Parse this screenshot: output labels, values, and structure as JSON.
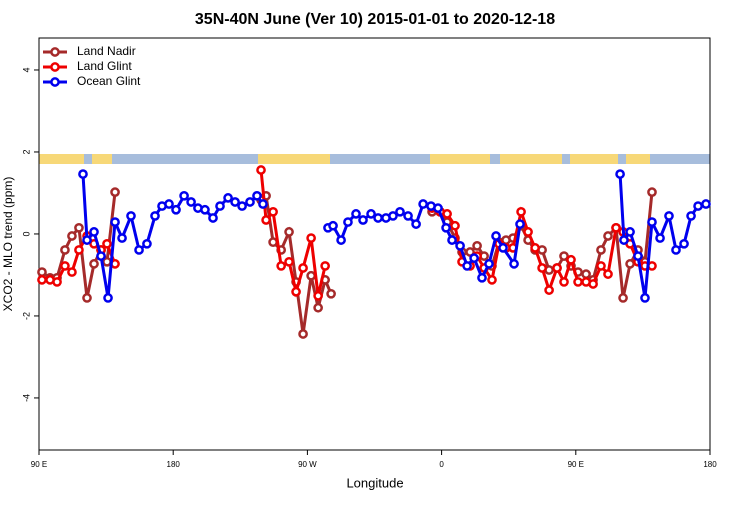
{
  "chart_data": {
    "type": "line",
    "title": "35N-40N June (Ver 10)   2015-01-01 to 2020-12-18",
    "x_label": "Longitude",
    "y_label": "XCO2 - MLO trend (ppm)",
    "xlim": [
      90,
      540
    ],
    "xticks": [
      {
        "value": 90,
        "label": "90 E"
      },
      180,
      {
        "value": 270,
        "label": "90 W"
      },
      {
        "value": 360,
        "label": "0"
      },
      {
        "value": 450,
        "label": "90 E"
      },
      {
        "value": 540,
        "label": "180"
      }
    ],
    "ylim": [
      -5.27,
      4.78
    ],
    "yticks": [
      -4,
      -2,
      0,
      2,
      4
    ],
    "legend": "top-left",
    "series": [
      {
        "name": "Land Nadir",
        "color": "#a52a2a",
        "x": [
          92.0,
          97.4,
          102.1,
          107.4,
          112.1,
          116.8,
          122.2,
          126.9,
          131.6,
          135.6,
          141.0,
          null,
          238.9,
          242.3,
          247.0,
          252.4,
          257.7,
          262.4,
          267.1,
          272.5,
          277.2,
          281.9,
          285.9,
          null,
          353.6,
          359.0,
          363.7,
          369.0,
          373.7,
          379.1,
          383.8,
          388.5,
          393.8,
          398.5,
          403.2,
          407.9,
          413.3,
          418.0,
          422.7,
          427.4,
          432.1,
          437.4,
          442.1,
          446.8,
          451.5,
          456.9,
          461.6,
          466.9,
          471.6,
          477.0,
          481.7,
          486.4,
          491.7,
          496.4,
          501.1
        ],
        "values": [
          -0.93,
          -1.07,
          -1.07,
          -0.39,
          -0.05,
          0.15,
          -1.56,
          -0.73,
          -0.39,
          -0.68,
          1.02,
          null,
          0.83,
          0.93,
          -0.2,
          -0.39,
          0.05,
          -1.17,
          -2.44,
          -1.02,
          -1.8,
          -1.12,
          -1.46,
          null,
          0.54,
          0.54,
          0.29,
          -0.1,
          -0.44,
          -0.44,
          -0.29,
          -0.54,
          -0.78,
          -0.2,
          -0.15,
          -0.1,
          0.2,
          -0.15,
          -0.39,
          -0.39,
          -0.88,
          -0.83,
          -0.54,
          -0.78,
          -0.93,
          -0.98,
          -1.12,
          -0.39,
          -0.05,
          0.15,
          -1.56,
          -0.73,
          -0.39,
          -0.68,
          1.02
        ]
      },
      {
        "name": "Land Glint",
        "color": "#ee0000",
        "x": [
          92.0,
          97.4,
          102.1,
          107.4,
          112.1,
          116.8,
          122.2,
          126.9,
          131.6,
          135.6,
          141.0,
          null,
          238.9,
          242.3,
          247.0,
          252.4,
          257.7,
          262.4,
          267.1,
          272.5,
          277.2,
          281.9,
          null,
          353.6,
          359.0,
          363.7,
          369.0,
          373.7,
          379.1,
          383.8,
          388.5,
          393.8,
          398.5,
          403.2,
          407.9,
          413.3,
          418.0,
          422.7,
          427.4,
          432.1,
          437.4,
          442.1,
          446.8,
          451.5,
          456.9,
          461.6,
          466.9,
          471.6,
          477.0,
          481.7,
          486.4,
          491.7,
          496.4,
          501.1
        ],
        "values": [
          -1.12,
          -1.12,
          -1.17,
          -0.78,
          -0.93,
          -0.39,
          -0.05,
          -0.24,
          -0.39,
          -0.24,
          -0.73,
          null,
          1.56,
          0.34,
          0.54,
          -0.78,
          -0.68,
          -1.41,
          -0.83,
          -0.1,
          -1.51,
          -0.78,
          null,
          0.63,
          0.54,
          0.49,
          0.2,
          -0.68,
          -0.78,
          -0.54,
          -0.83,
          -1.12,
          -0.24,
          -0.34,
          -0.34,
          0.54,
          0.05,
          -0.34,
          -0.83,
          -1.37,
          -0.83,
          -1.17,
          -0.63,
          -1.17,
          -1.17,
          -1.22,
          -0.78,
          -0.98,
          0.15,
          0.05,
          -0.24,
          -0.68,
          -0.78,
          -0.78
        ]
      },
      {
        "name": "Ocean Glint",
        "color": "#0000ee",
        "x": [
          119.5,
          122.2,
          126.9,
          131.6,
          136.3,
          141.0,
          145.7,
          151.7,
          157.1,
          162.4,
          167.8,
          172.5,
          177.2,
          181.9,
          187.3,
          192.0,
          196.6,
          201.3,
          206.7,
          211.4,
          216.8,
          221.5,
          226.2,
          231.5,
          236.2,
          240.2,
          null,
          283.8,
          287.2,
          292.6,
          297.2,
          302.6,
          307.3,
          312.7,
          317.4,
          322.7,
          327.4,
          332.1,
          337.5,
          342.9,
          347.6,
          352.9,
          357.6,
          363.0,
          367.0,
          372.4,
          377.1,
          381.8,
          387.1,
          391.8,
          396.5,
          401.2,
          408.6,
          412.6,
          null,
          479.7,
          482.3,
          486.4,
          491.7,
          496.4,
          501.1,
          506.5,
          512.5,
          517.2,
          522.6,
          527.3,
          532.0,
          537.3
        ],
        "values": [
          1.46,
          -0.15,
          0.05,
          -0.54,
          -1.56,
          0.29,
          -0.1,
          0.44,
          -0.39,
          -0.24,
          0.44,
          0.68,
          0.73,
          0.59,
          0.93,
          0.78,
          0.63,
          0.59,
          0.39,
          0.68,
          0.88,
          0.78,
          0.68,
          0.78,
          0.93,
          0.73,
          null,
          0.15,
          0.2,
          -0.15,
          0.29,
          0.49,
          0.34,
          0.49,
          0.39,
          0.39,
          0.44,
          0.54,
          0.44,
          0.24,
          0.73,
          0.68,
          0.63,
          0.15,
          -0.15,
          -0.29,
          -0.78,
          -0.59,
          -1.07,
          -0.73,
          -0.05,
          -0.34,
          -0.73,
          0.24,
          null,
          1.46,
          -0.15,
          0.05,
          -0.54,
          -1.56,
          0.29,
          -0.1,
          0.44,
          -0.39,
          -0.24,
          0.44,
          0.68,
          0.73
        ]
      }
    ]
  }
}
